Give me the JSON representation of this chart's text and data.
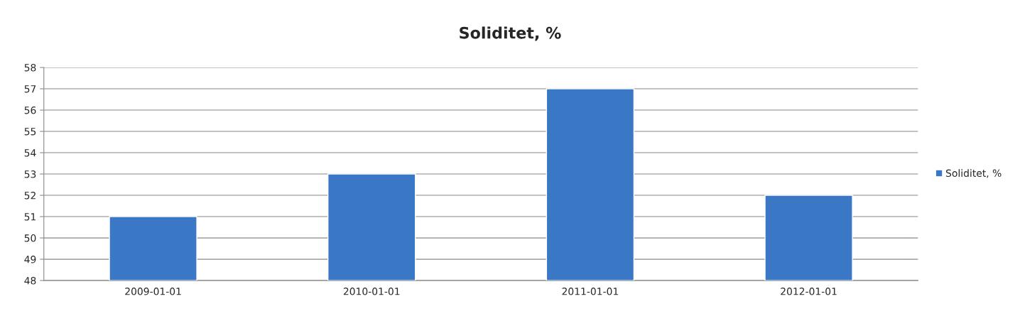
{
  "chart_data": {
    "type": "bar",
    "title": "Soliditet, %",
    "categories": [
      "2009-01-01",
      "2010-01-01",
      "2011-01-01",
      "2012-01-01"
    ],
    "series": [
      {
        "name": "Soliditet, %",
        "color": "#3a78c6",
        "values": [
          51,
          53,
          57,
          52
        ]
      }
    ],
    "ylim": [
      48,
      58
    ],
    "yticks": [
      48,
      49,
      50,
      51,
      52,
      53,
      54,
      55,
      56,
      57,
      58
    ],
    "grid": "y",
    "legend": "right"
  }
}
